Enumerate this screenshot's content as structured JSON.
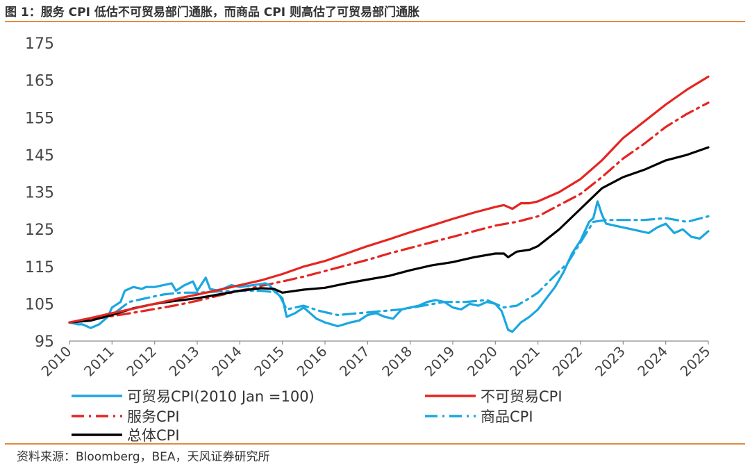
{
  "title": "图 1：服务 CPI 低估不可贸易部门通胀，而商品 CPI 则高估了可贸易部门通胀",
  "source": "资料来源：Bloomberg，BEA，天风证券研究所",
  "colors": {
    "rule": "#E38A3C",
    "text": "#333333"
  },
  "chart_data": {
    "type": "line",
    "title": "",
    "xlabel": "",
    "ylabel": "",
    "xlim": [
      2010,
      2025
    ],
    "ylim": [
      95,
      175
    ],
    "grid": false,
    "legend_position": "bottom",
    "x_ticks": [
      "2010",
      "2011",
      "2012",
      "2013",
      "2014",
      "2015",
      "2016",
      "2017",
      "2018",
      "2019",
      "2020",
      "2021",
      "2022",
      "2023",
      "2024",
      "2025"
    ],
    "y_ticks": [
      "95",
      "105",
      "115",
      "125",
      "135",
      "145",
      "155",
      "165",
      "175"
    ],
    "series": [
      {
        "name": "可贸易CPI(2010 Jan =100)",
        "color": "#1AA7E1",
        "dash": "solid",
        "x": [
          2010.0,
          2010.2,
          2010.3,
          2010.5,
          2010.7,
          2010.9,
          2011.0,
          2011.2,
          2011.3,
          2011.5,
          2011.7,
          2011.8,
          2012.0,
          2012.2,
          2012.4,
          2012.5,
          2012.7,
          2012.9,
          2013.0,
          2013.2,
          2013.3,
          2013.5,
          2013.8,
          2014.0,
          2014.3,
          2014.6,
          2014.7,
          2014.8,
          2015.0,
          2015.1,
          2015.3,
          2015.5,
          2015.8,
          2016.0,
          2016.3,
          2016.6,
          2016.8,
          2017.0,
          2017.2,
          2017.4,
          2017.6,
          2017.8,
          2018.0,
          2018.2,
          2018.4,
          2018.6,
          2018.8,
          2019.0,
          2019.2,
          2019.4,
          2019.6,
          2019.8,
          2020.0,
          2020.15,
          2020.3,
          2020.4,
          2020.6,
          2020.8,
          2021.0,
          2021.2,
          2021.4,
          2021.6,
          2021.8,
          2022.0,
          2022.2,
          2022.3,
          2022.4,
          2022.5,
          2022.6,
          2022.8,
          2023.0,
          2023.2,
          2023.4,
          2023.6,
          2023.8,
          2024.0,
          2024.2,
          2024.4,
          2024.6,
          2024.8,
          2025.0
        ],
        "values": [
          100,
          99.5,
          99.5,
          98.5,
          99.5,
          101.5,
          104,
          105.5,
          108.5,
          109.5,
          109,
          109.5,
          109.5,
          110,
          110.5,
          108.5,
          110,
          111,
          108.5,
          112,
          109,
          108.5,
          110,
          109.5,
          110,
          110.5,
          110,
          108.5,
          106.5,
          101.5,
          102.5,
          104,
          101,
          100,
          99,
          100,
          100.5,
          102,
          102.5,
          101.5,
          101,
          103.5,
          104,
          104.5,
          105.5,
          106,
          105.5,
          104,
          103.5,
          105,
          104.5,
          105.5,
          105,
          103,
          98,
          97.5,
          100,
          101.5,
          103.5,
          106.5,
          109.5,
          113.5,
          118.5,
          122,
          127,
          128,
          132.5,
          129,
          126.5,
          126,
          125.5,
          125,
          124.5,
          124,
          125.5,
          126.5,
          124,
          125,
          123,
          122.5,
          124.5
        ]
      },
      {
        "name": "不可贸易CPI",
        "color": "#E52521",
        "dash": "solid",
        "x": [
          2010.0,
          2010.5,
          2011.0,
          2011.5,
          2012.0,
          2012.5,
          2013.0,
          2013.5,
          2014.0,
          2014.5,
          2015.0,
          2015.5,
          2016.0,
          2016.5,
          2017.0,
          2017.5,
          2018.0,
          2018.5,
          2019.0,
          2019.5,
          2020.0,
          2020.2,
          2020.4,
          2020.6,
          2020.8,
          2021.0,
          2021.5,
          2022.0,
          2022.5,
          2023.0,
          2023.5,
          2024.0,
          2024.5,
          2025.0
        ],
        "values": [
          100,
          101.2,
          102.5,
          103.7,
          105,
          106.3,
          107.5,
          108.7,
          110,
          111.3,
          113,
          115,
          116.5,
          118.5,
          120.5,
          122.3,
          124.2,
          126,
          127.8,
          129.5,
          131,
          131.5,
          130.5,
          132,
          132,
          132.5,
          135,
          138.5,
          143.5,
          149.5,
          154,
          158.5,
          162.5,
          166
        ]
      },
      {
        "name": "服务CPI",
        "color": "#E52521",
        "dash": "dashdot",
        "x": [
          2010.0,
          2010.5,
          2011.0,
          2011.5,
          2012.0,
          2012.5,
          2013.0,
          2013.5,
          2014.0,
          2014.5,
          2015.0,
          2015.5,
          2016.0,
          2016.5,
          2017.0,
          2017.5,
          2018.0,
          2018.5,
          2019.0,
          2019.5,
          2020.0,
          2020.5,
          2021.0,
          2021.5,
          2022.0,
          2022.5,
          2023.0,
          2023.5,
          2024.0,
          2024.5,
          2025.0
        ],
        "values": [
          100,
          100.8,
          101.7,
          102.6,
          103.6,
          104.6,
          105.8,
          107.2,
          108.5,
          109.8,
          111,
          112.3,
          113.8,
          115.3,
          116.8,
          118.5,
          120,
          121.5,
          123,
          124.5,
          126,
          127,
          128.5,
          131.5,
          134.5,
          139,
          144,
          148,
          152.5,
          156,
          159
        ]
      },
      {
        "name": "商品CPI",
        "color": "#1AA7E1",
        "dash": "dashdot",
        "x": [
          2010.0,
          2010.5,
          2011.0,
          2011.4,
          2011.8,
          2012.2,
          2012.6,
          2013.0,
          2013.5,
          2014.0,
          2014.5,
          2014.9,
          2015.1,
          2015.5,
          2015.9,
          2016.3,
          2016.8,
          2017.3,
          2017.8,
          2018.3,
          2018.8,
          2019.3,
          2019.8,
          2020.2,
          2020.5,
          2020.8,
          2021.0,
          2021.3,
          2021.7,
          2022.0,
          2022.3,
          2022.6,
          2023.0,
          2023.5,
          2024.0,
          2024.5,
          2025.0
        ],
        "values": [
          100,
          100.5,
          102,
          105.5,
          106.5,
          107.5,
          108,
          108,
          108.3,
          108.5,
          108.5,
          108,
          103.5,
          104.5,
          103,
          102,
          102.5,
          103,
          103.5,
          104.5,
          105.5,
          105.5,
          106,
          104,
          104.5,
          106.5,
          108,
          111.5,
          116,
          121.5,
          127,
          127.5,
          127.5,
          127.5,
          128,
          127,
          128.5
        ]
      },
      {
        "name": "总体CPI",
        "color": "#000000",
        "dash": "solid",
        "x": [
          2010.0,
          2010.5,
          2011.0,
          2011.5,
          2012.0,
          2012.5,
          2013.0,
          2013.5,
          2014.0,
          2014.5,
          2014.8,
          2015.0,
          2015.5,
          2016.0,
          2016.5,
          2017.0,
          2017.5,
          2018.0,
          2018.5,
          2019.0,
          2019.5,
          2020.0,
          2020.2,
          2020.3,
          2020.5,
          2020.8,
          2021.0,
          2021.5,
          2022.0,
          2022.5,
          2023.0,
          2023.5,
          2024.0,
          2024.5,
          2025.0
        ],
        "values": [
          100,
          100.5,
          102,
          103.8,
          105,
          105.8,
          106.5,
          107.5,
          108.5,
          109.2,
          109,
          108,
          108.8,
          109.3,
          110.5,
          111.5,
          112.5,
          114,
          115.3,
          116.2,
          117.5,
          118.5,
          118.5,
          117.5,
          119,
          119.5,
          120.5,
          125,
          130.5,
          136,
          139,
          141,
          143.5,
          145,
          147
        ]
      }
    ]
  }
}
